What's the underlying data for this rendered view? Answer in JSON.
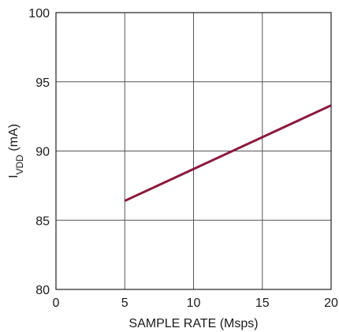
{
  "chart_data": {
    "type": "line",
    "xlabel": "SAMPLE RATE (Msps)",
    "ylabel_main": "I",
    "ylabel_sub": "VDD",
    "ylabel_unit": " (mA)",
    "xlim": [
      0,
      20
    ],
    "ylim": [
      80,
      100
    ],
    "x_ticks": [
      0,
      5,
      10,
      15,
      20
    ],
    "y_ticks": [
      80,
      85,
      90,
      95,
      100
    ],
    "x_tick_labels": [
      "0",
      "5",
      "10",
      "15",
      "20"
    ],
    "y_tick_labels": [
      "80",
      "85",
      "90",
      "95",
      "100"
    ],
    "grid": true,
    "series": [
      {
        "color": "#8b1a3c",
        "x": [
          5,
          20
        ],
        "y": [
          86.4,
          93.3
        ]
      }
    ]
  }
}
